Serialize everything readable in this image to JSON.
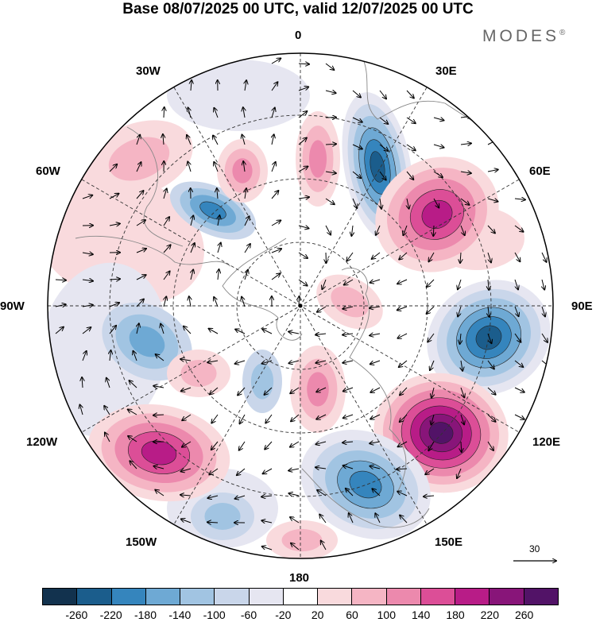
{
  "header": {
    "title": "Base 08/07/2025 00 UTC, valid 12/07/2025 00 UTC",
    "brand": "MODES",
    "brand_mark": "®"
  },
  "map": {
    "projection": "north-polar-stereographic",
    "longitude_labels": {
      "lon_0": "0",
      "lon_30e": "30E",
      "lon_60e": "60E",
      "lon_90e": "90E",
      "lon_120e": "120E",
      "lon_150e": "150E",
      "lon_180": "180",
      "lon_150w": "150W",
      "lon_120w": "120W",
      "lon_90w": "90W",
      "lon_60w": "60W",
      "lon_30w": "30W"
    },
    "reference_vector": {
      "label": "30",
      "value": 30
    },
    "anomaly_centers": [
      {
        "name": "north-atlantic-high",
        "lon": -20,
        "sign": "positive"
      },
      {
        "name": "barents-low",
        "lon": 15,
        "sign": "negative"
      },
      {
        "name": "ural-high",
        "lon": 52,
        "sign": "positive"
      },
      {
        "name": "central-asia-low",
        "lon": 100,
        "sign": "negative"
      },
      {
        "name": "east-asia-high",
        "lon": 128,
        "level": 260
      },
      {
        "name": "north-pacific-low",
        "lon": 160,
        "sign": "negative"
      },
      {
        "name": "northeast-pacific-high",
        "lon": -120,
        "level": 220
      }
    ]
  },
  "colorbar": {
    "colors": [
      "#12324e",
      "#1b5d8c",
      "#3585bd",
      "#6ea9d4",
      "#a1c4e2",
      "#c9d6ea",
      "#e6e6f1",
      "#ffffff",
      "#f9dadd",
      "#f5b5c4",
      "#ec89ad",
      "#dc4e97",
      "#b81c87",
      "#881579",
      "#521367"
    ],
    "labels": [
      "-260",
      "-220",
      "-180",
      "-140",
      "-100",
      "-60",
      "-20",
      "20",
      "60",
      "100",
      "140",
      "180",
      "220",
      "260"
    ]
  }
}
